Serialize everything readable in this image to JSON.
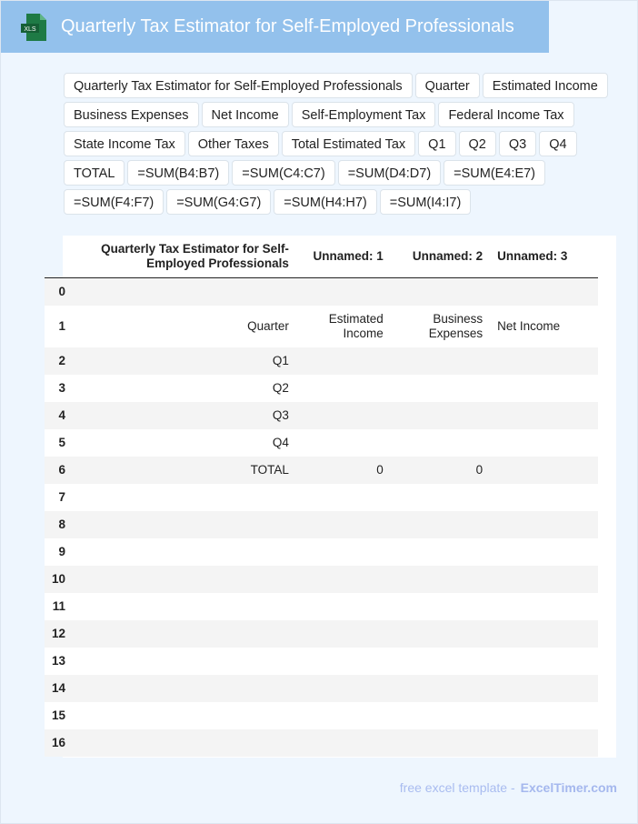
{
  "header": {
    "title": "Quarterly Tax Estimator for Self-Employed Professionals",
    "icon": "xls-file-icon",
    "icon_label": "XLS",
    "accent": "#93c1ec"
  },
  "chips": [
    "Quarterly Tax Estimator for Self-Employed Professionals",
    "Quarter",
    "Estimated Income",
    "Business Expenses",
    "Net Income",
    "Self-Employment Tax",
    "Federal Income Tax",
    "State Income Tax",
    "Other Taxes",
    "Total Estimated Tax",
    "Q1",
    "Q2",
    "Q3",
    "Q4",
    "TOTAL",
    "=SUM(B4:B7)",
    "=SUM(C4:C7)",
    "=SUM(D4:D7)",
    "=SUM(E4:E7)",
    "=SUM(F4:F7)",
    "=SUM(G4:G7)",
    "=SUM(H4:H7)",
    "=SUM(I4:I7)"
  ],
  "table": {
    "columns": [
      "",
      "Quarterly Tax Estimator for Self-Employed Professionals",
      "Unnamed: 1",
      "Unnamed: 2",
      "Unnamed: 3"
    ],
    "rows": [
      [
        "0",
        "",
        "",
        "",
        ""
      ],
      [
        "1",
        "Quarter",
        "Estimated Income",
        "Business Expenses",
        "Net Income"
      ],
      [
        "2",
        "Q1",
        "",
        "",
        ""
      ],
      [
        "3",
        "Q2",
        "",
        "",
        ""
      ],
      [
        "4",
        "Q3",
        "",
        "",
        ""
      ],
      [
        "5",
        "Q4",
        "",
        "",
        ""
      ],
      [
        "6",
        "TOTAL",
        "0",
        "0",
        ""
      ],
      [
        "7",
        "",
        "",
        "",
        ""
      ],
      [
        "8",
        "",
        "",
        "",
        ""
      ],
      [
        "9",
        "",
        "",
        "",
        ""
      ],
      [
        "10",
        "",
        "",
        "",
        ""
      ],
      [
        "11",
        "",
        "",
        "",
        ""
      ],
      [
        "12",
        "",
        "",
        "",
        ""
      ],
      [
        "13",
        "",
        "",
        "",
        ""
      ],
      [
        "14",
        "",
        "",
        "",
        ""
      ],
      [
        "15",
        "",
        "",
        "",
        ""
      ],
      [
        "16",
        "",
        "",
        "",
        ""
      ]
    ]
  },
  "footer": {
    "text": "free excel template -",
    "brand": "ExcelTimer.com"
  }
}
